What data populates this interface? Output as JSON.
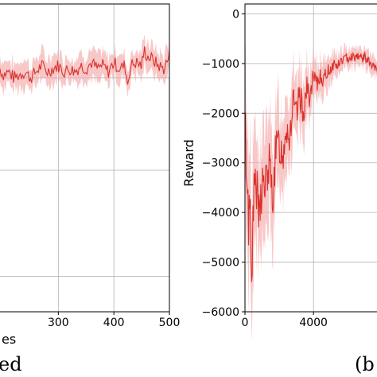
{
  "chart_data": [
    {
      "type": "line",
      "title": "",
      "xlabel": "es",
      "ylabel": "",
      "caption": "ed",
      "xlim": [
        195,
        500
      ],
      "ylim": [
        0,
        1
      ],
      "xticks": [
        {
          "value": 300,
          "label": "300"
        },
        {
          "value": 400,
          "label": "400"
        },
        {
          "value": 500,
          "label": "500"
        }
      ],
      "grid": true,
      "colors": {
        "line": "#d9312b",
        "band": "#f4a9a9"
      },
      "series": [
        {
          "x": [
            195,
            200,
            210,
            220,
            230,
            240,
            250,
            260,
            270,
            280,
            290,
            300,
            310,
            320,
            330,
            340,
            350,
            360,
            370,
            380,
            390,
            400,
            410,
            420,
            425,
            430,
            440,
            450,
            455,
            460,
            470,
            480,
            490,
            500
          ],
          "y": [
            0.79,
            0.77,
            0.78,
            0.76,
            0.77,
            0.78,
            0.76,
            0.78,
            0.8,
            0.78,
            0.79,
            0.8,
            0.78,
            0.79,
            0.78,
            0.8,
            0.79,
            0.81,
            0.79,
            0.8,
            0.78,
            0.81,
            0.79,
            0.8,
            0.74,
            0.8,
            0.81,
            0.8,
            0.85,
            0.83,
            0.82,
            0.8,
            0.79,
            0.83
          ]
        }
      ]
    },
    {
      "type": "line",
      "title": "",
      "xlabel": "",
      "ylabel": "Reward",
      "caption": "(b",
      "xlim": [
        0,
        7800
      ],
      "ylim": [
        -6000,
        200
      ],
      "xticks": [
        {
          "value": 0,
          "label": "0"
        },
        {
          "value": 4000,
          "label": "4000"
        }
      ],
      "yticks": [
        {
          "value": 0,
          "label": "0"
        },
        {
          "value": -1000,
          "label": "−1000"
        },
        {
          "value": -2000,
          "label": "−2000"
        },
        {
          "value": -3000,
          "label": "−3000"
        },
        {
          "value": -4000,
          "label": "−4000"
        },
        {
          "value": -5000,
          "label": "−5000"
        },
        {
          "value": -6000,
          "label": "−6000"
        }
      ],
      "grid": true,
      "colors": {
        "line": "#d9312b",
        "band": "#f4a9a9"
      },
      "series": [
        {
          "x": [
            0,
            100,
            200,
            300,
            400,
            500,
            600,
            800,
            1000,
            1200,
            1400,
            1600,
            1800,
            2000,
            2200,
            2400,
            2600,
            2800,
            3000,
            3200,
            3400,
            3600,
            3800,
            4000,
            4200,
            4400,
            4600,
            4800,
            5000,
            5200,
            5400,
            5600,
            5800,
            6000,
            6200,
            6400,
            6600,
            6800,
            7000,
            7200,
            7400,
            7600,
            7800
          ],
          "y": [
            -2300,
            -3000,
            -4200,
            -3600,
            -5000,
            -4000,
            -3200,
            -4200,
            -3400,
            -3500,
            -3000,
            -3700,
            -2800,
            -2600,
            -2900,
            -2200,
            -2500,
            -1800,
            -2100,
            -1600,
            -2000,
            -1500,
            -1700,
            -1300,
            -1450,
            -1200,
            -1350,
            -1150,
            -1100,
            -1000,
            -1050,
            -950,
            -900,
            -880,
            -850,
            -870,
            -820,
            -900,
            -860,
            -950,
            -1050,
            -1100,
            -1200
          ]
        }
      ]
    }
  ]
}
